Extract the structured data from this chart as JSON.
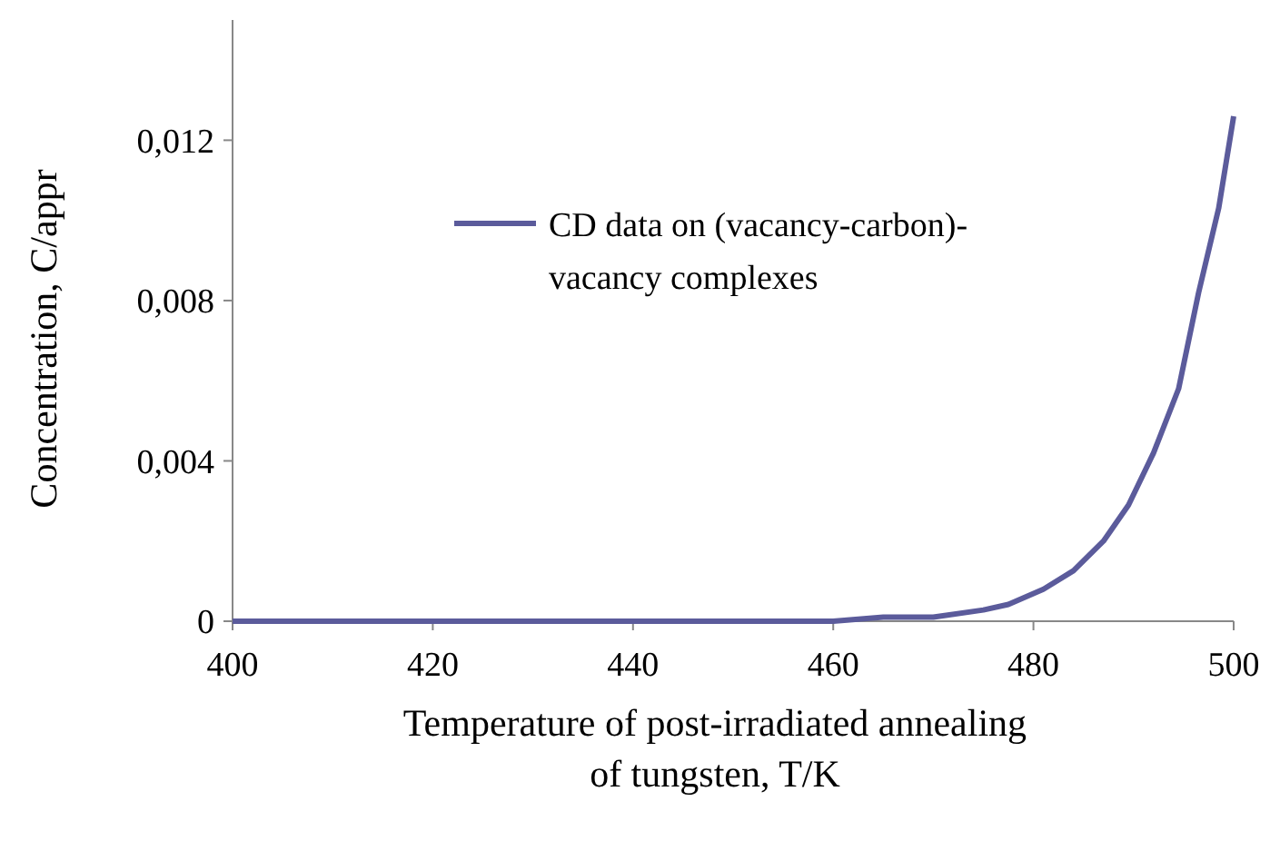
{
  "chart_data": {
    "type": "line",
    "xlabel": "Temperature of post-irradiated annealing of tungsten, T/K",
    "ylabel": "Concentration, C/appr",
    "x": [
      400,
      420,
      440,
      460,
      465,
      470,
      475,
      477.5,
      481,
      484,
      487,
      489.5,
      492,
      494.5,
      496.5,
      498.5,
      500
    ],
    "series": [
      {
        "name": "CD data on (vacancy-carbon)-vacancy complexes",
        "color": "#5b5b9b",
        "values": [
          0,
          0,
          0,
          0,
          0.0001,
          0.0001,
          0.00028,
          0.00042,
          0.0008,
          0.00126,
          0.002,
          0.0029,
          0.0042,
          0.0058,
          0.0082,
          0.0103,
          0.0126
        ]
      }
    ],
    "xlim": [
      400,
      500
    ],
    "xticks": [
      400,
      420,
      440,
      460,
      480,
      500
    ],
    "ylim": [
      0,
      0.015
    ],
    "yticks": [
      {
        "value": 0,
        "label": "0"
      },
      {
        "value": 0.004,
        "label": "0,004"
      },
      {
        "value": 0.008,
        "label": "0,008"
      },
      {
        "value": 0.012,
        "label": "0,012"
      }
    ],
    "grid": false,
    "legend": "top",
    "marker": "none",
    "line_style": "solid"
  }
}
